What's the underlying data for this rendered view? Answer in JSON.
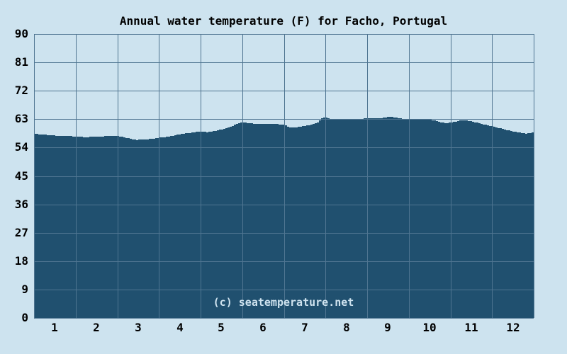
{
  "title": "Annual water temperature (F) for Facho, Portugal",
  "watermark": "(c) seatemperature.net",
  "colors": {
    "background": "#cde3ef",
    "area_fill": "#20506f",
    "gridline": "#4f7591",
    "label_text": "#000000",
    "watermark_text": "#cfe3ef"
  },
  "chart_data": {
    "type": "area",
    "title": "Annual water temperature (F) for Facho, Portugal",
    "xlabel": "",
    "ylabel": "",
    "xlim": [
      0,
      12
    ],
    "ylim": [
      0,
      90
    ],
    "grid": true,
    "legend": "none",
    "x_ticks": [
      "1",
      "2",
      "3",
      "4",
      "5",
      "6",
      "7",
      "8",
      "9",
      "10",
      "11",
      "12"
    ],
    "y_ticks": [
      0,
      9,
      18,
      27,
      36,
      45,
      54,
      63,
      72,
      81,
      90
    ],
    "categories": [
      "1",
      "2",
      "3",
      "4",
      "5",
      "6",
      "7",
      "8",
      "9",
      "10",
      "11",
      "12"
    ],
    "monthly_avg_f": [
      57.8,
      57.5,
      56.7,
      58.3,
      60.3,
      61.5,
      61.5,
      63.0,
      63.3,
      62.5,
      62.1,
      59.3
    ],
    "series": [
      {
        "name": "Water temperature (F)",
        "points": [
          [
            0.0,
            58.3
          ],
          [
            0.2,
            58.1
          ],
          [
            0.46,
            57.8
          ],
          [
            0.71,
            57.7
          ],
          [
            0.97,
            57.5
          ],
          [
            1.23,
            57.3
          ],
          [
            1.48,
            57.5
          ],
          [
            1.74,
            57.6
          ],
          [
            1.96,
            57.8
          ],
          [
            2.16,
            57.2
          ],
          [
            2.42,
            56.4
          ],
          [
            2.67,
            56.6
          ],
          [
            2.93,
            57.0
          ],
          [
            3.18,
            57.4
          ],
          [
            3.44,
            58.1
          ],
          [
            3.69,
            58.6
          ],
          [
            3.95,
            59.1
          ],
          [
            4.15,
            58.9
          ],
          [
            4.37,
            59.4
          ],
          [
            4.6,
            60.1
          ],
          [
            4.8,
            61.2
          ],
          [
            4.97,
            62.0
          ],
          [
            5.17,
            61.7
          ],
          [
            5.4,
            61.4
          ],
          [
            5.6,
            61.6
          ],
          [
            5.82,
            61.4
          ],
          [
            5.99,
            61.2
          ],
          [
            6.13,
            60.4
          ],
          [
            6.33,
            60.5
          ],
          [
            6.55,
            61.0
          ],
          [
            6.79,
            62.0
          ],
          [
            6.93,
            63.6
          ],
          [
            7.1,
            63.1
          ],
          [
            7.32,
            62.8
          ],
          [
            7.52,
            62.9
          ],
          [
            7.78,
            63.1
          ],
          [
            8.03,
            63.3
          ],
          [
            8.29,
            63.3
          ],
          [
            8.54,
            63.8
          ],
          [
            8.75,
            63.3
          ],
          [
            8.94,
            62.8
          ],
          [
            9.14,
            63.0
          ],
          [
            9.4,
            63.1
          ],
          [
            9.6,
            62.6
          ],
          [
            9.74,
            62.0
          ],
          [
            9.87,
            61.7
          ],
          [
            10.01,
            62.0
          ],
          [
            10.16,
            62.4
          ],
          [
            10.3,
            62.7
          ],
          [
            10.47,
            62.4
          ],
          [
            10.64,
            61.8
          ],
          [
            10.81,
            61.2
          ],
          [
            11.01,
            60.7
          ],
          [
            11.22,
            59.9
          ],
          [
            11.39,
            59.4
          ],
          [
            11.61,
            58.8
          ],
          [
            11.78,
            58.4
          ],
          [
            11.91,
            58.7
          ],
          [
            12.0,
            58.7
          ]
        ]
      }
    ]
  }
}
